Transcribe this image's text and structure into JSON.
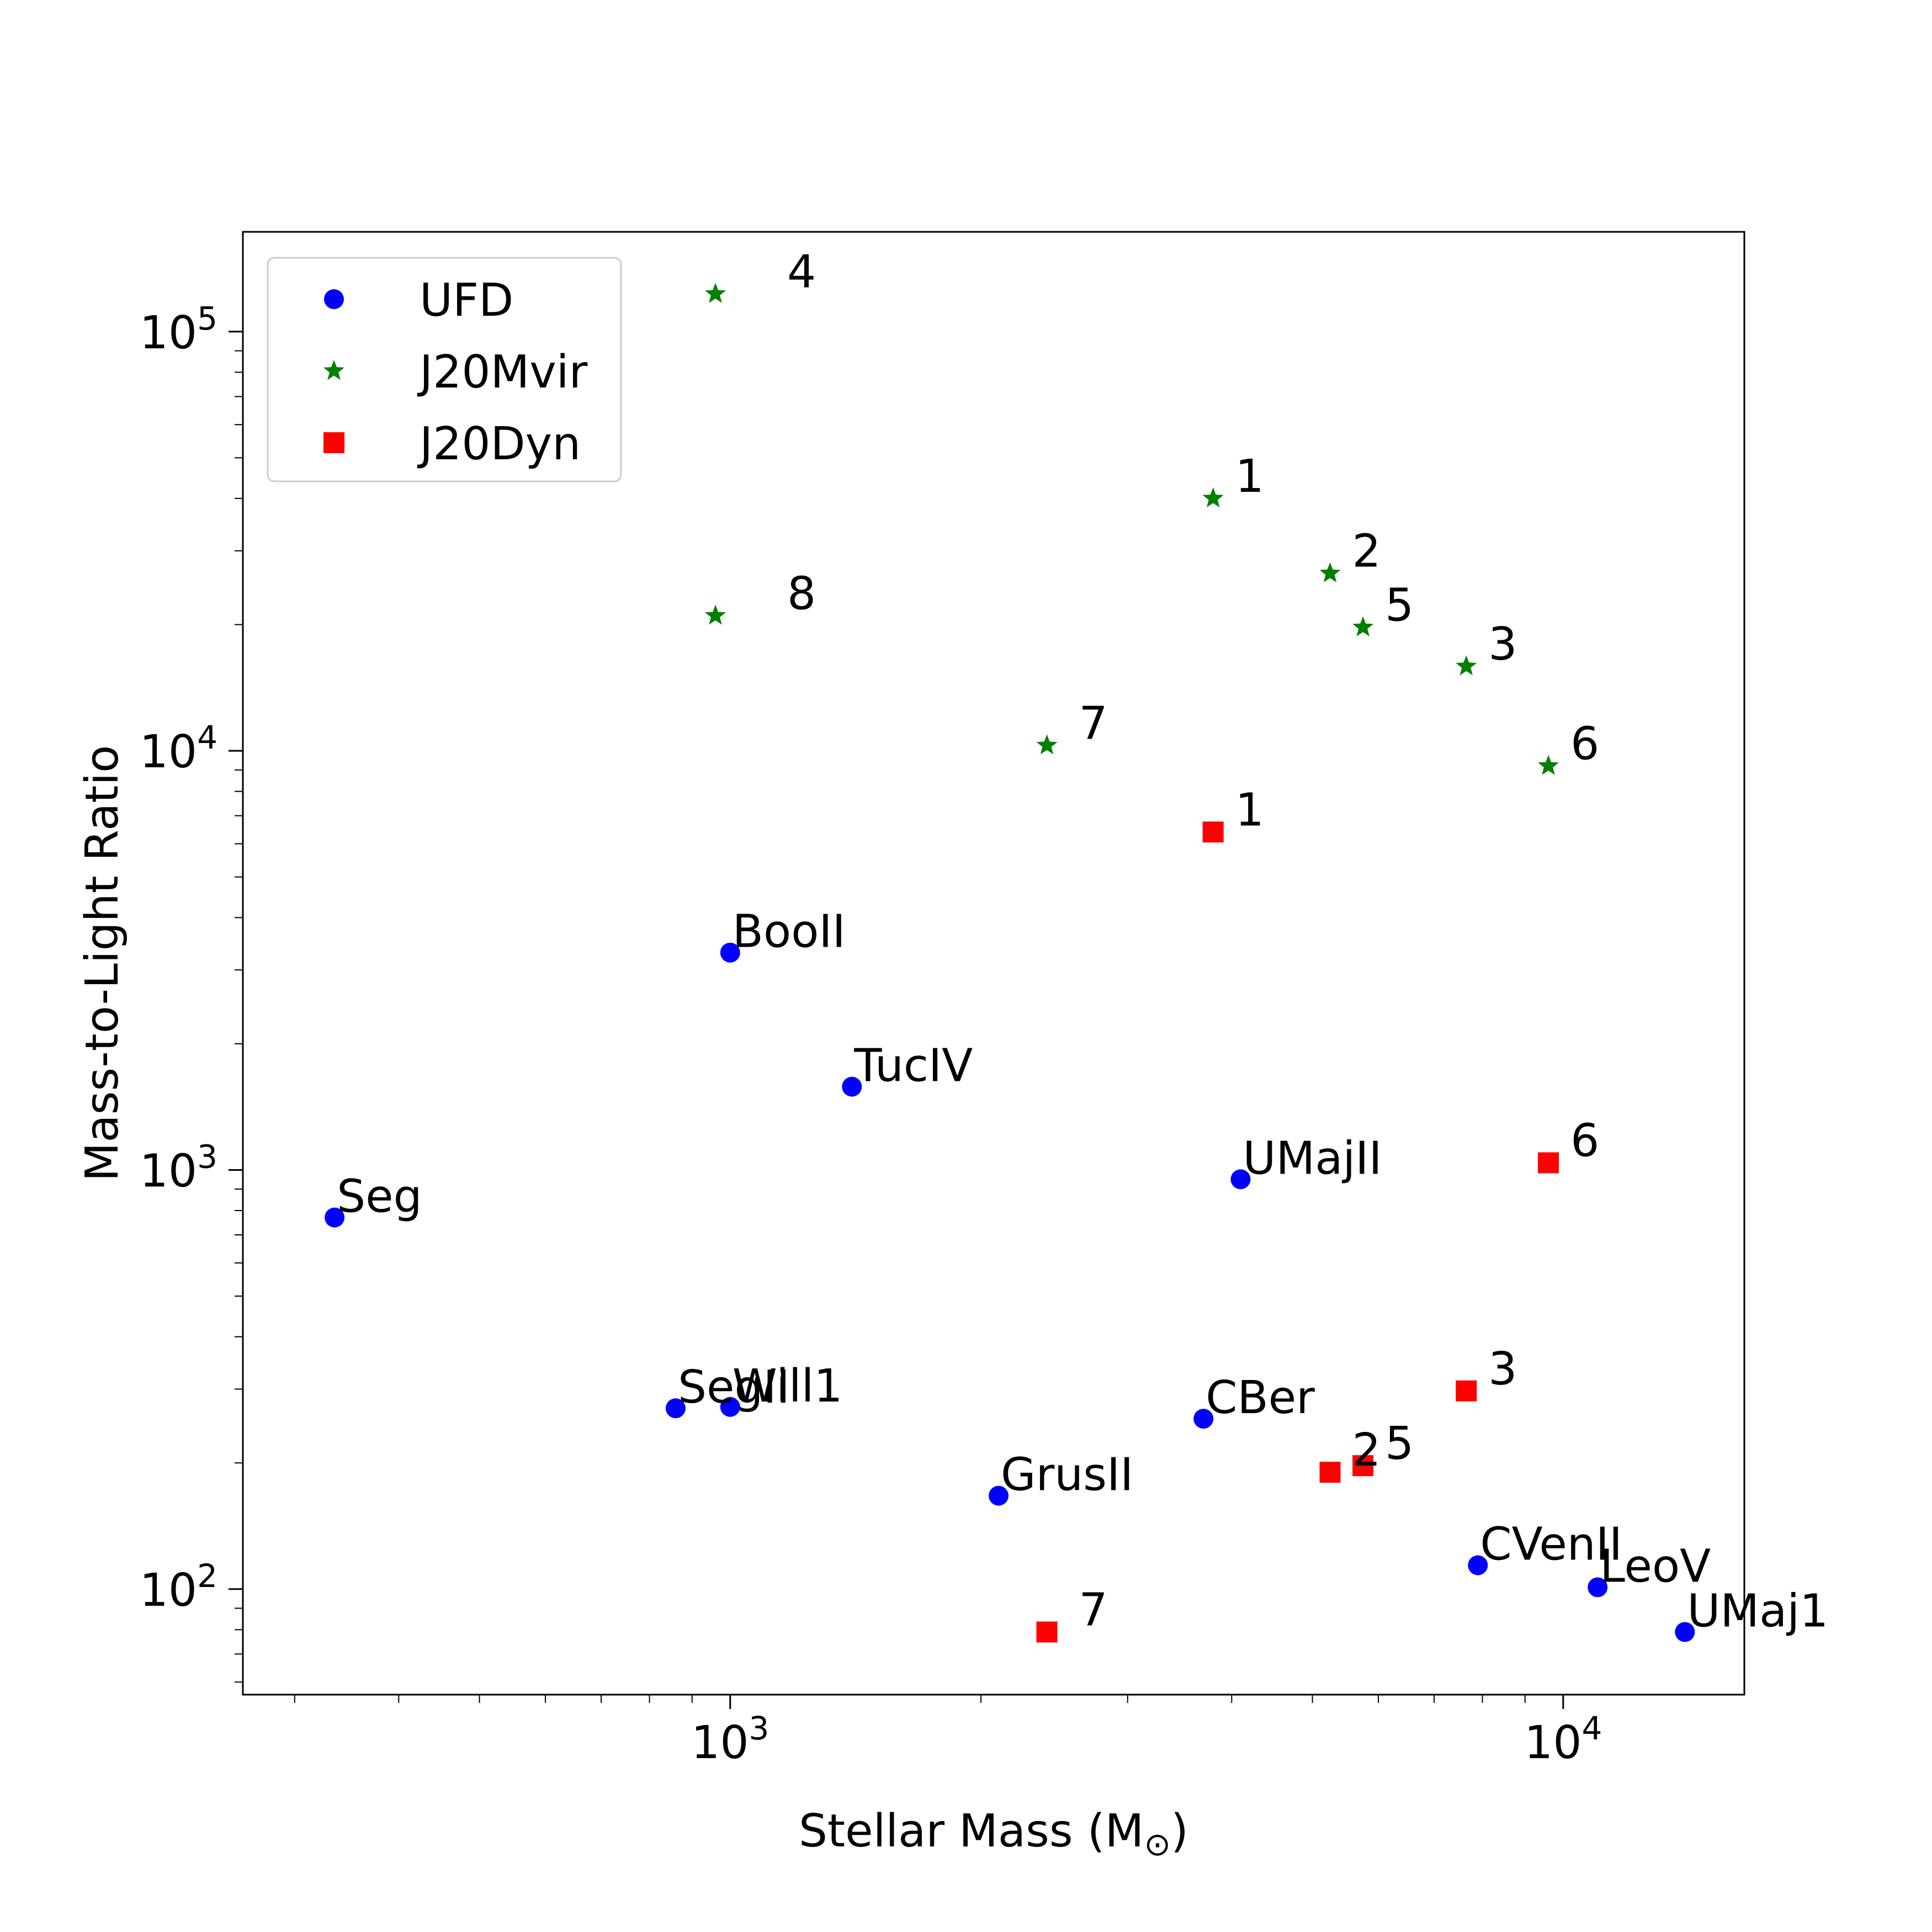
{
  "chart_data": {
    "type": "scatter",
    "xlabel": "Stellar Mass (M",
    "xlabel_symbol": "⊙",
    "xlabel_suffix": ")",
    "ylabel": "Mass-to-Light Ratio",
    "x_scale": "log",
    "y_scale": "log",
    "xlim": [
      260,
      16500
    ],
    "ylim": [
      56,
      173000
    ],
    "grid": false,
    "legend_placement": "top-left",
    "x_ticks": [
      {
        "base": "10",
        "exp": "3",
        "value": 1000
      },
      {
        "base": "10",
        "exp": "4",
        "value": 10000
      }
    ],
    "y_ticks": [
      {
        "base": "10",
        "exp": "2",
        "value": 100
      },
      {
        "base": "10",
        "exp": "3",
        "value": 1000
      },
      {
        "base": "10",
        "exp": "4",
        "value": 10000
      },
      {
        "base": "10",
        "exp": "5",
        "value": 100000
      }
    ],
    "series": [
      {
        "name": "UFD",
        "color": "#0000ff",
        "marker": "circle",
        "points": [
          {
            "label": "Seg",
            "x": 335,
            "y": 770
          },
          {
            "label": "BooII",
            "x": 1000,
            "y": 3300
          },
          {
            "label": "TucIV",
            "x": 1400,
            "y": 1580
          },
          {
            "label": "UMajII",
            "x": 4100,
            "y": 950
          },
          {
            "label": "SegII",
            "x": 860,
            "y": 270
          },
          {
            "label": "Will1",
            "x": 1000,
            "y": 272
          },
          {
            "label": "GrusII",
            "x": 2100,
            "y": 167
          },
          {
            "label": "CBer",
            "x": 3700,
            "y": 255
          },
          {
            "label": "CVenII",
            "x": 7900,
            "y": 114
          },
          {
            "label": "LeoV",
            "x": 11000,
            "y": 101
          },
          {
            "label": "UMaj1",
            "x": 14000,
            "y": 79
          }
        ]
      },
      {
        "name": "J20Mvir",
        "color": "#008000",
        "marker": "star",
        "points": [
          {
            "label": "4",
            "x": 960,
            "y": 123000
          },
          {
            "label": "1",
            "x": 3800,
            "y": 40000
          },
          {
            "label": "2",
            "x": 5250,
            "y": 26500
          },
          {
            "label": "5",
            "x": 5750,
            "y": 19700
          },
          {
            "label": "3",
            "x": 7650,
            "y": 15900
          },
          {
            "label": "8",
            "x": 960,
            "y": 21000
          },
          {
            "label": "7",
            "x": 2400,
            "y": 10300
          },
          {
            "label": "6",
            "x": 9600,
            "y": 9200
          }
        ]
      },
      {
        "name": "J20Dyn",
        "color": "#ff0000",
        "marker": "square",
        "points": [
          {
            "label": "1",
            "x": 3800,
            "y": 6400
          },
          {
            "label": "6",
            "x": 9600,
            "y": 1040
          },
          {
            "label": "3",
            "x": 7650,
            "y": 297
          },
          {
            "label": "2",
            "x": 5250,
            "y": 190
          },
          {
            "label": "5",
            "x": 5750,
            "y": 197
          },
          {
            "label": "7",
            "x": 2400,
            "y": 79
          }
        ]
      }
    ]
  }
}
